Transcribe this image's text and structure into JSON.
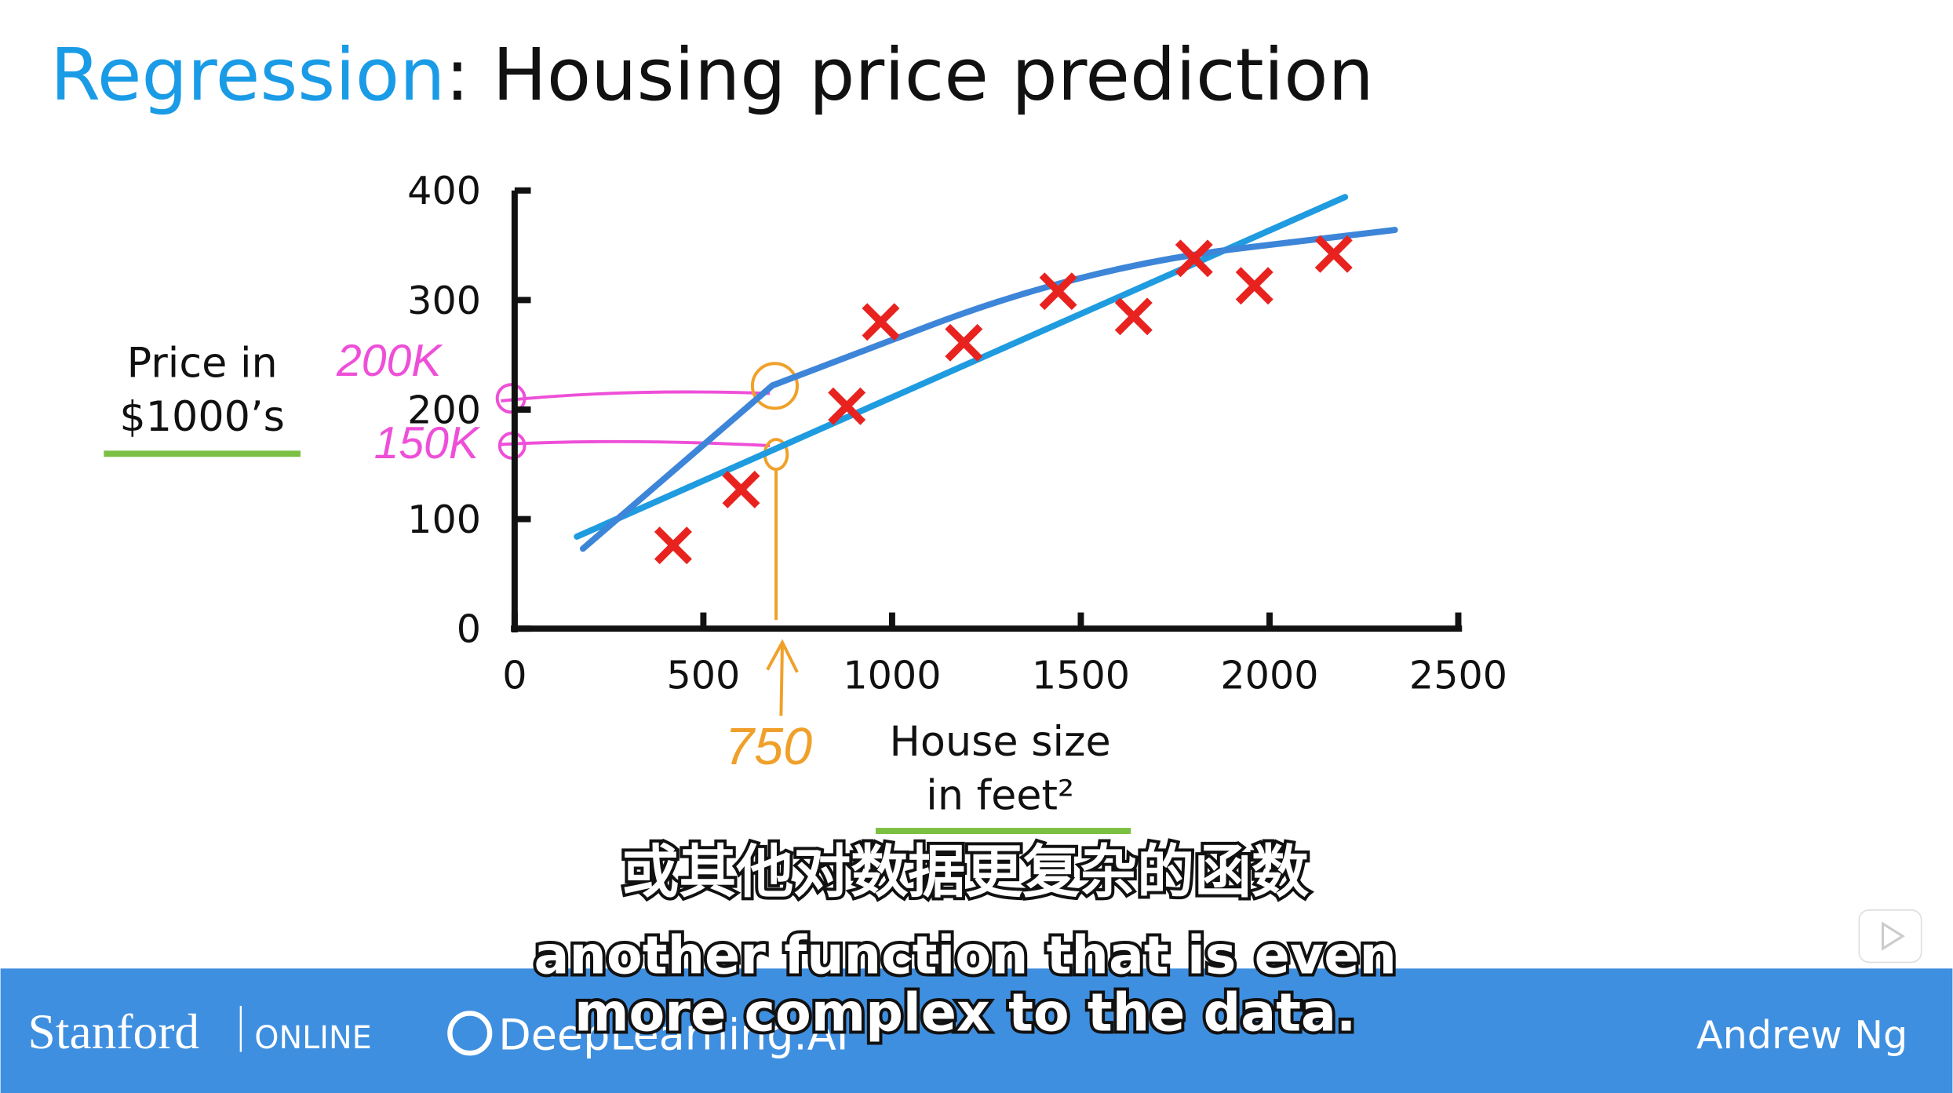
{
  "chart_data": {
    "type": "scatter",
    "title_highlight": "Regression",
    "title": ": Housing price prediction",
    "y_label_lines": [
      "Price in",
      "$1000’s"
    ],
    "x_label_lines": [
      "House size",
      "in feet²"
    ],
    "annotations": [
      "200K",
      "150K",
      "750"
    ],
    "xlim": [
      0,
      2500
    ],
    "xticks": [
      0,
      500,
      1000,
      1500,
      2000,
      2500
    ],
    "ylim": [
      0,
      400
    ],
    "yticks": [
      0,
      100,
      200,
      300,
      400
    ],
    "series": [
      {
        "color": "#e8231f",
        "x": [
          420,
          600,
          880,
          970,
          1190,
          1440,
          1640,
          1800,
          1960,
          2170
        ],
        "values": [
          76,
          127,
          203,
          280,
          261,
          308,
          285,
          338,
          313,
          342
        ]
      }
    ],
    "lines": [
      {
        "color": "#1f9be0",
        "x": [
          165,
          2200
        ],
        "values": [
          84,
          394
        ]
      },
      {
        "color": "#3d85d8",
        "x": [
          181,
          683,
          1507,
          2332
        ],
        "values": [
          73,
          222,
          330,
          364
        ]
      }
    ]
  },
  "subtitles": {
    "zh": "或其他对数据更复杂的函数",
    "en": [
      "another function that is even",
      "more complex to the data."
    ]
  },
  "footer": {
    "left": "Stanford",
    "left_small": "ONLINE",
    "middle": "DeepLearning.AI",
    "right": "Andrew Ng"
  }
}
